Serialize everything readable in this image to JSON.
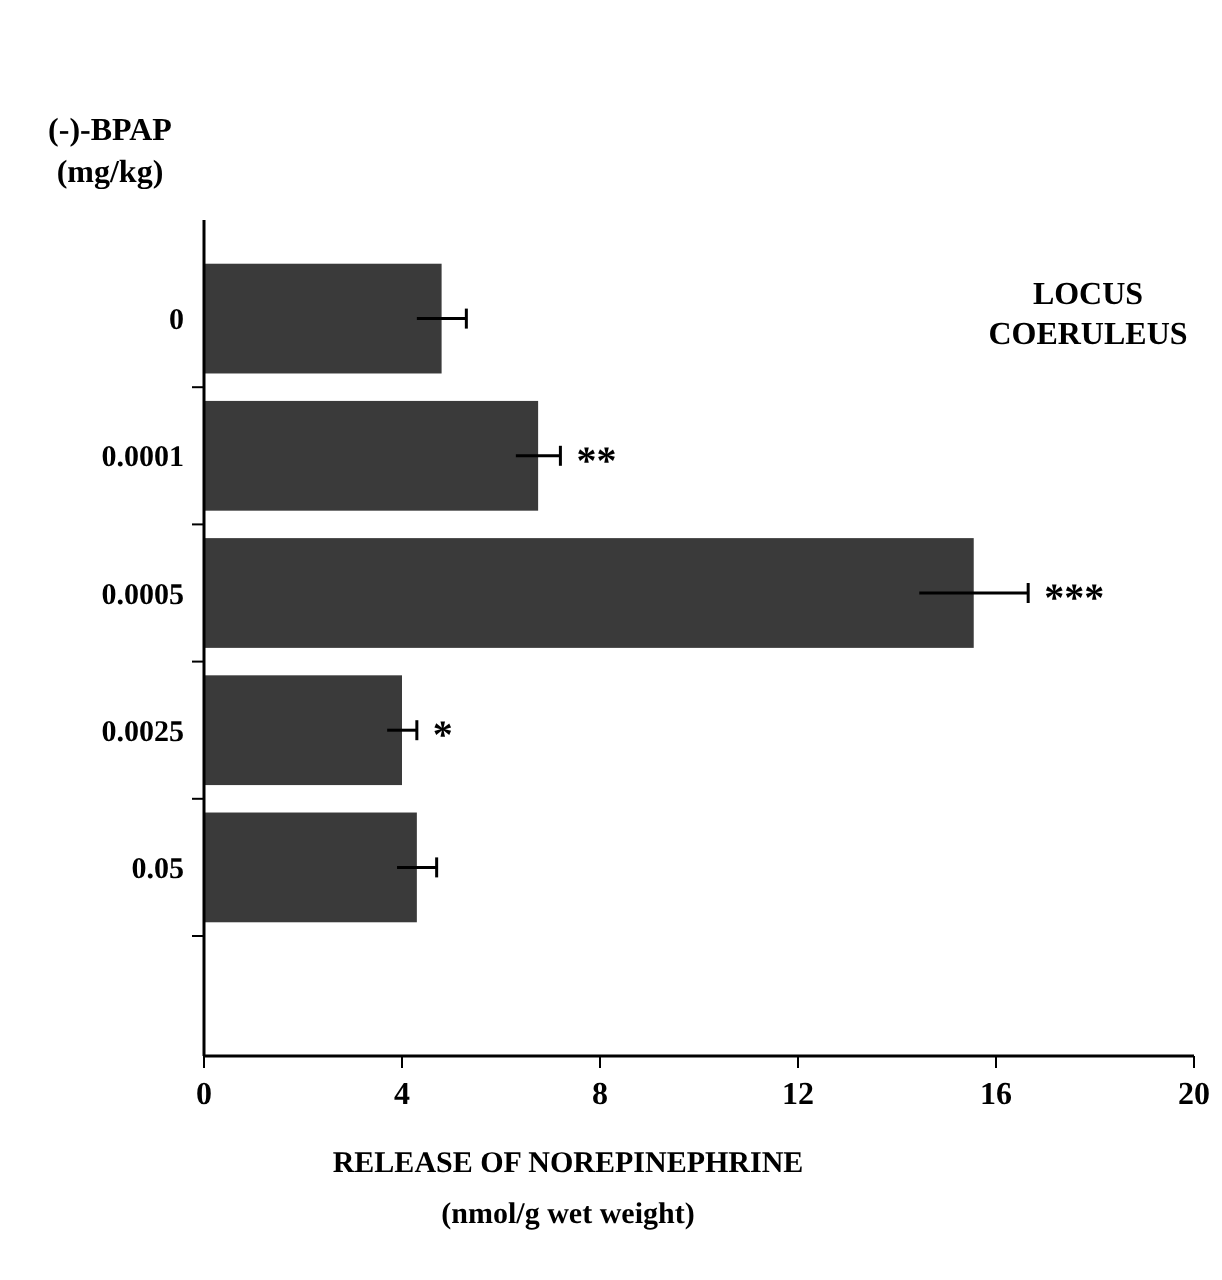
{
  "chart_data": {
    "type": "bar",
    "orientation": "horizontal",
    "title": "LOCUS COERULEUS",
    "ylabel": "(-)-BPAP (mg/kg)",
    "xlabel": "RELEASE OF NOREPINEPHRINE\n(nmol/g wet weight)",
    "categories": [
      "0",
      "0.0001",
      "0.0005",
      "0.0025",
      "0.05"
    ],
    "values": [
      4.8,
      6.75,
      15.55,
      4.0,
      4.3
    ],
    "errors": [
      0.5,
      0.45,
      1.1,
      0.3,
      0.4
    ],
    "color": "#3a3a3a",
    "xlim": [
      0,
      20
    ],
    "xticks": [
      0,
      4,
      8,
      12,
      16,
      20
    ],
    "grid": false,
    "annotations": [
      {
        "text": "**",
        "x": 7.2,
        "y": "0.0001"
      },
      {
        "text": "***",
        "x": 16.65,
        "y": "0.0005"
      },
      {
        "text": "*",
        "x": 4.3,
        "y": "0.0025"
      }
    ]
  }
}
